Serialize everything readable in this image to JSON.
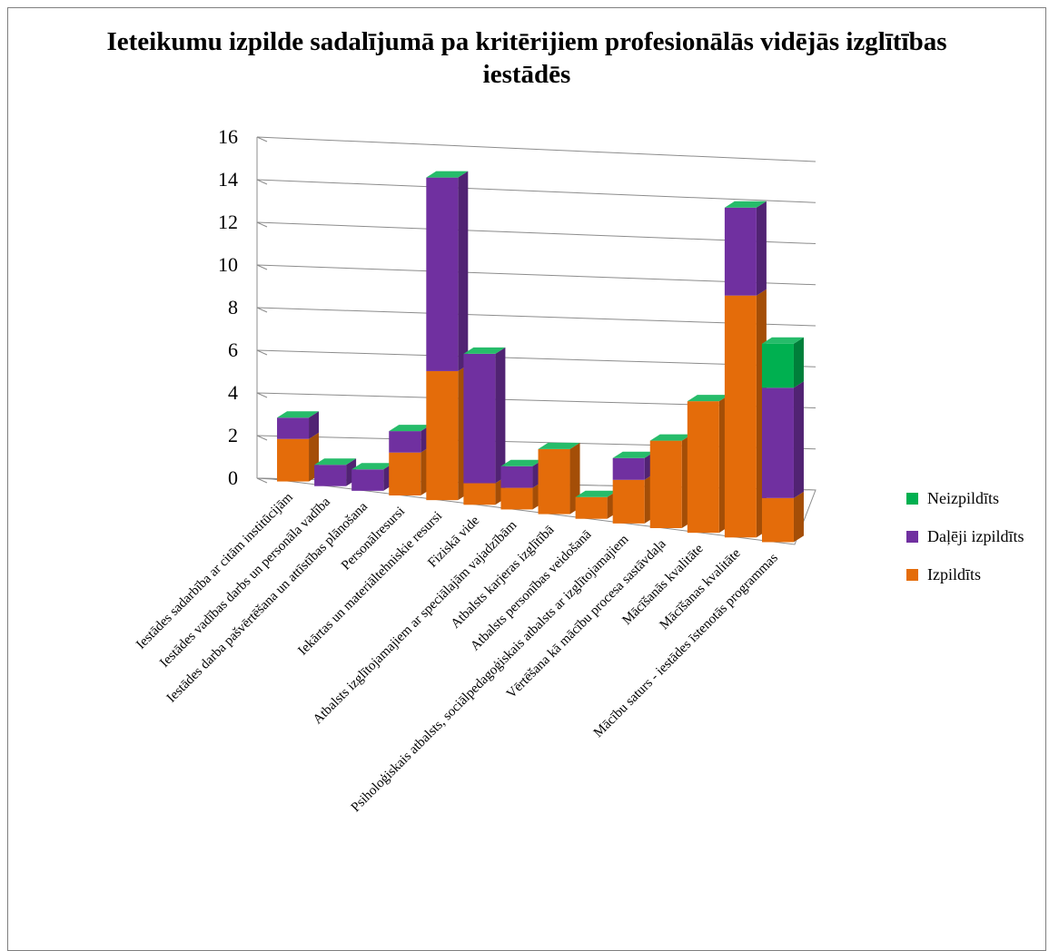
{
  "chart_data": {
    "type": "bar",
    "stacked": true,
    "three_d": true,
    "title": "Ieteikumu izpilde sadalījumā pa kritērijiem profesionālās vidējās izglītības iestādēs",
    "categories": [
      "Iestādes sadarbība ar citām institūcijām",
      "Iestādes vadības darbs un personāla vadība",
      "Iestādes darba pašvērtēšana un attīstības plānošana",
      "Personālresursi",
      "Iekārtas un materiāltehniskie resursi",
      "Fiziskā vide",
      "Atbalsts izglītojamajiem ar speciālajām vajadzībām",
      "Atbalsts karjeras izglītībā",
      "Atbalsts personības veidošanā",
      "Psiholoģiskais atbalsts, sociālpedagoģiskais atbalsts ar izglītojamajiem",
      "Vērtēšana kā mācību procesa sastāvdaļa",
      "Mācīšanās kvalitāte",
      "Mācīšanas kvalitāte",
      "Mācību saturs - iestādes īstenotās programmas"
    ],
    "series": [
      {
        "name": "Izpildīts",
        "color": "#e46c0a",
        "values": [
          2,
          0,
          0,
          2,
          6,
          1,
          1,
          3,
          1,
          2,
          4,
          6,
          11,
          2
        ]
      },
      {
        "name": "Daļēji izpildīts",
        "color": "#7030a0",
        "values": [
          1,
          1,
          1,
          1,
          9,
          6,
          1,
          0,
          0,
          1,
          0,
          0,
          4,
          5
        ]
      },
      {
        "name": "Neizpildīts",
        "color": "#00b050",
        "values": [
          0,
          0,
          0,
          0,
          0,
          0,
          0,
          0,
          0,
          0,
          0,
          0,
          0,
          2
        ]
      }
    ],
    "y_ticks": [
      "0",
      "2",
      "4",
      "6",
      "8",
      "10",
      "12",
      "14",
      "16"
    ],
    "ylim": [
      0,
      16
    ],
    "grid": true,
    "legend_position": "right"
  }
}
